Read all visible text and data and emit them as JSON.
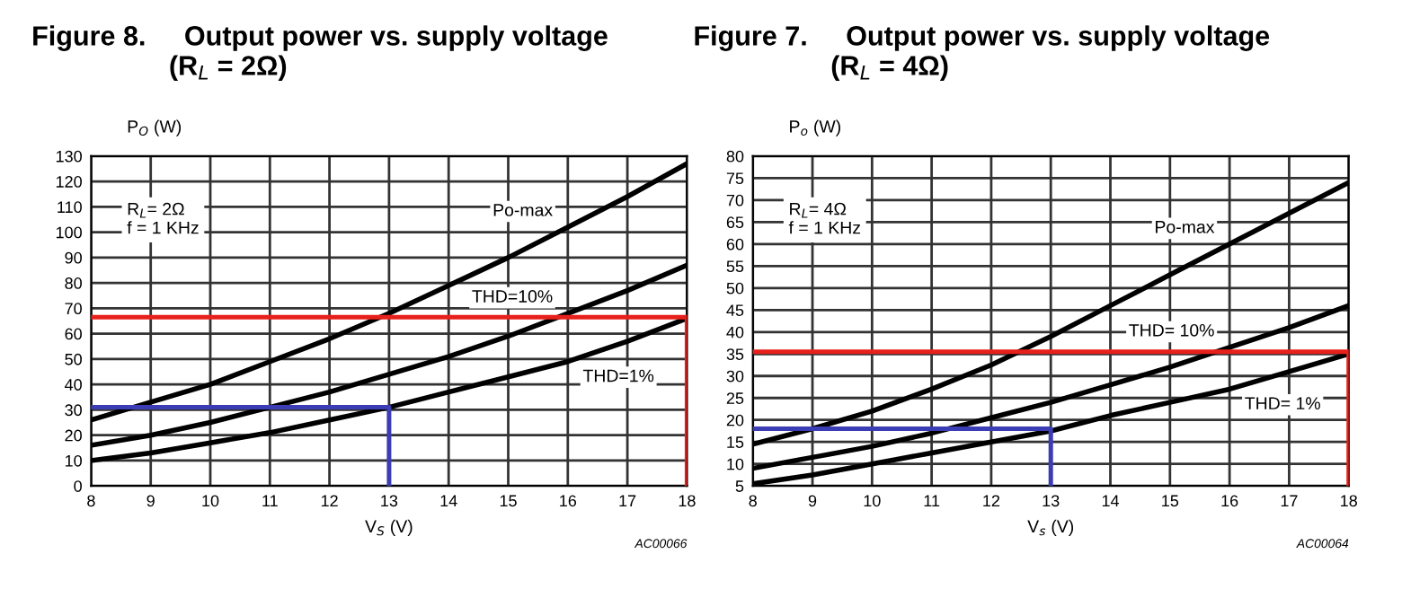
{
  "chart_data": [
    {
      "type": "line",
      "title": "Figure 8.     Output power vs. supply voltage\n                  (R$_{L}$ = 2Ω)",
      "xlabel": "V$_{S}$ (V)",
      "ylabel": "P$_{O}$ (W)",
      "annotations": [
        "R$_{L}$= 2Ω\nf = 1 KHz",
        "AC00066"
      ],
      "x": [
        8,
        9,
        10,
        11,
        12,
        13,
        14,
        15,
        16,
        17,
        18
      ],
      "xlim": [
        8,
        18
      ],
      "xticks": [
        8,
        9,
        10,
        11,
        12,
        13,
        14,
        15,
        16,
        17,
        18
      ],
      "ylim": [
        0,
        130
      ],
      "yticks": [
        0,
        10,
        20,
        30,
        40,
        50,
        60,
        70,
        80,
        90,
        100,
        110,
        120,
        130
      ],
      "grid": true,
      "legend": false,
      "line_style": "solid",
      "series": [
        {
          "name": "Po-max",
          "color": "#000000",
          "values": [
            26,
            33,
            40,
            49,
            58,
            68,
            79,
            90,
            102,
            114,
            127
          ]
        },
        {
          "name": "THD=10%",
          "color": "#000000",
          "values": [
            16,
            20,
            25,
            31,
            37,
            44,
            51,
            59,
            68,
            77,
            87
          ]
        },
        {
          "name": "THD=1%",
          "color": "#000000",
          "values": [
            10,
            13,
            17,
            21,
            26,
            31,
            37,
            43,
            49,
            57,
            66
          ]
        },
        {
          "color": "#e8201c",
          "x": [
            8,
            18,
            18
          ],
          "values": [
            66.5,
            66.5,
            0
          ]
        },
        {
          "color": "#3c3cb4",
          "x": [
            8,
            13,
            13
          ],
          "values": [
            31,
            31,
            0
          ]
        }
      ]
    },
    {
      "type": "line",
      "title": "Figure 7.     Output power vs. supply voltage\n                  (R$_{L}$ = 4Ω)",
      "xlabel": "V$_{s}$ (V)",
      "ylabel": "P$_{o}$ (W)",
      "annotations": [
        "R$_{L}$= 4Ω\nf = 1 KHz",
        "AC00064"
      ],
      "x": [
        8,
        9,
        10,
        11,
        12,
        13,
        14,
        15,
        16,
        17,
        18
      ],
      "xlim": [
        8,
        18
      ],
      "xticks": [
        8,
        9,
        10,
        11,
        12,
        13,
        14,
        15,
        16,
        17,
        18
      ],
      "ylim": [
        5,
        80
      ],
      "yticks": [
        5,
        10,
        15,
        20,
        25,
        30,
        35,
        40,
        45,
        50,
        55,
        60,
        65,
        70,
        75,
        80
      ],
      "grid": true,
      "legend": false,
      "line_style": "solid",
      "series": [
        {
          "name": "Po-max",
          "color": "#000000",
          "values": [
            14.5,
            18,
            22,
            27,
            32.5,
            39,
            46,
            53,
            60,
            67,
            74
          ]
        },
        {
          "name": "THD= 10%",
          "color": "#000000",
          "values": [
            9,
            11.5,
            14,
            17,
            20.5,
            24,
            28,
            32,
            36.5,
            41,
            46
          ]
        },
        {
          "name": "THD= 1%",
          "color": "#000000",
          "values": [
            5.5,
            7.5,
            10,
            12.5,
            15,
            17.5,
            21,
            24,
            27,
            31,
            35
          ]
        },
        {
          "color": "#e8201c",
          "x": [
            8,
            18,
            18
          ],
          "values": [
            35.5,
            35.5,
            5
          ]
        },
        {
          "color": "#3c3cb4",
          "x": [
            8,
            13,
            13
          ],
          "values": [
            18,
            18,
            5
          ]
        }
      ]
    }
  ]
}
